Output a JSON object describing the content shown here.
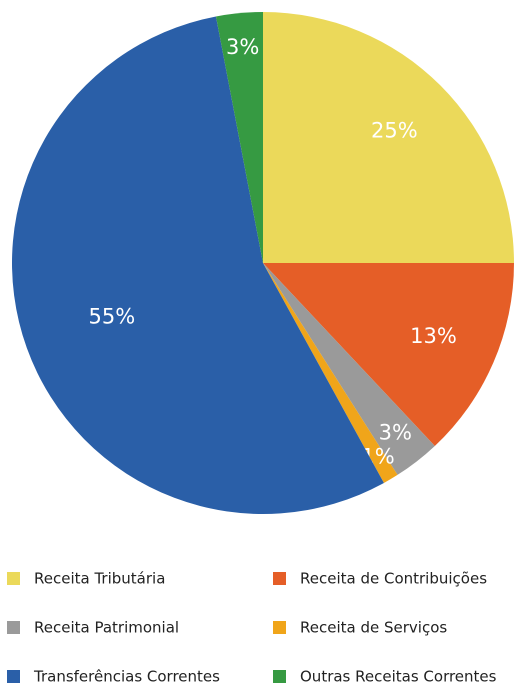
{
  "chart_data": {
    "type": "pie",
    "categories": [
      "Receita Tributária",
      "Receita de Contribuições",
      "Receita Patrimonial",
      "Receita de Serviços",
      "Transferências Correntes",
      "Outras Receitas Correntes"
    ],
    "values": [
      25,
      13,
      3,
      1,
      55,
      3
    ],
    "value_labels": [
      "25%",
      "13%",
      "3%",
      "1%",
      "55%",
      "3%"
    ],
    "colors": [
      "#ebd95a",
      "#e55e27",
      "#9a9a9a",
      "#f0a51a",
      "#2a5fa8",
      "#369a42"
    ],
    "legend": "bottom"
  }
}
